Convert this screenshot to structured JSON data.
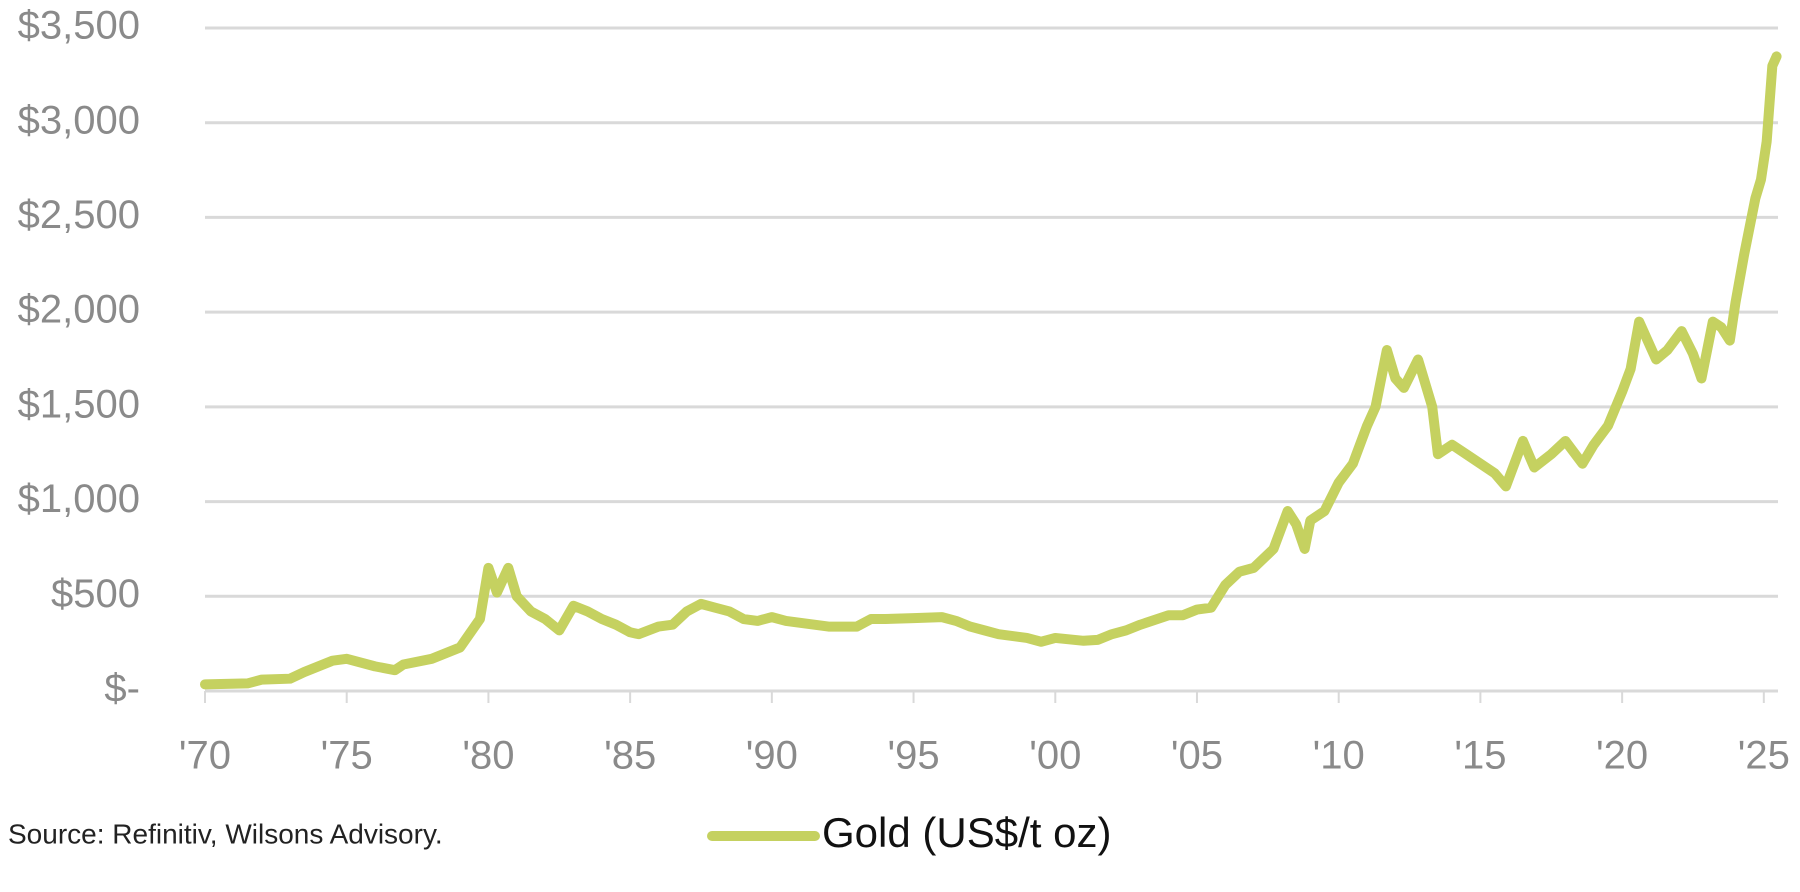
{
  "chart_data": {
    "type": "line",
    "source": "Source: Refinitiv, Wilsons Advisory.",
    "x": [
      1970,
      1971.5,
      1972,
      1973,
      1973.5,
      1974.5,
      1975,
      1976,
      1976.7,
      1977,
      1978,
      1979,
      1979.7,
      1980,
      1980.3,
      1980.7,
      1981,
      1981.5,
      1982,
      1982.5,
      1983,
      1983.5,
      1984,
      1984.5,
      1985,
      1985.3,
      1986,
      1986.5,
      1987,
      1987.5,
      1988,
      1988.5,
      1989,
      1989.5,
      1990,
      1990.5,
      1991,
      1992,
      1993,
      1993.5,
      1994,
      1995,
      1996,
      1996.5,
      1997,
      1997.5,
      1998,
      1999,
      1999.5,
      2000,
      2001,
      2001.5,
      2002,
      2002.5,
      2003,
      2004,
      2004.5,
      2005,
      2005.5,
      2006,
      2006.5,
      2007,
      2007.7,
      2008.2,
      2008.5,
      2008.8,
      2009,
      2009.5,
      2010,
      2010.5,
      2011,
      2011.3,
      2011.7,
      2012,
      2012.3,
      2012.8,
      2013,
      2013.3,
      2013.5,
      2014,
      2014.5,
      2015,
      2015.5,
      2015.9,
      2016.5,
      2016.9,
      2017.5,
      2018,
      2018.6,
      2019,
      2019.5,
      2020,
      2020.3,
      2020.6,
      2020.9,
      2021.2,
      2021.6,
      2022.1,
      2022.5,
      2022.8,
      2023.2,
      2023.5,
      2023.8,
      2024,
      2024.3,
      2024.7,
      2024.9,
      2025.1,
      2025.3,
      2025.45
    ],
    "series": [
      {
        "name": "Gold (US$/t oz)",
        "color": "#c5d160",
        "values": [
          35,
          40,
          60,
          65,
          100,
          160,
          170,
          130,
          110,
          140,
          170,
          230,
          380,
          650,
          520,
          650,
          500,
          420,
          380,
          320,
          450,
          420,
          380,
          350,
          310,
          300,
          340,
          350,
          420,
          460,
          440,
          420,
          380,
          370,
          390,
          370,
          360,
          340,
          340,
          380,
          380,
          385,
          390,
          370,
          340,
          320,
          300,
          280,
          260,
          280,
          265,
          270,
          300,
          320,
          350,
          400,
          400,
          430,
          440,
          560,
          630,
          650,
          750,
          950,
          880,
          750,
          900,
          950,
          1100,
          1200,
          1400,
          1500,
          1800,
          1650,
          1600,
          1750,
          1650,
          1500,
          1250,
          1300,
          1250,
          1200,
          1150,
          1080,
          1320,
          1180,
          1250,
          1320,
          1200,
          1300,
          1400,
          1580,
          1700,
          1950,
          1850,
          1750,
          1800,
          1900,
          1780,
          1650,
          1950,
          1920,
          1850,
          2050,
          2300,
          2600,
          2700,
          2900,
          3300,
          3350
        ]
      }
    ],
    "xlim": [
      1970,
      2025.5
    ],
    "xticks": [
      {
        "value": 1970,
        "label": "'70"
      },
      {
        "value": 1975,
        "label": "'75"
      },
      {
        "value": 1980,
        "label": "'80"
      },
      {
        "value": 1985,
        "label": "'85"
      },
      {
        "value": 1990,
        "label": "'90"
      },
      {
        "value": 1995,
        "label": "'95"
      },
      {
        "value": 2000,
        "label": "'00"
      },
      {
        "value": 2005,
        "label": "'05"
      },
      {
        "value": 2010,
        "label": "'10"
      },
      {
        "value": 2015,
        "label": "'15"
      },
      {
        "value": 2020,
        "label": "'20"
      },
      {
        "value": 2025,
        "label": "'25"
      }
    ],
    "ylim": [
      0,
      3500
    ],
    "yticks": [
      {
        "value": 0,
        "label": "$-"
      },
      {
        "value": 500,
        "label": "$500"
      },
      {
        "value": 1000,
        "label": "$1,000"
      },
      {
        "value": 1500,
        "label": "$1,500"
      },
      {
        "value": 2000,
        "label": "$2,000"
      },
      {
        "value": 2500,
        "label": "$2,500"
      },
      {
        "value": 3000,
        "label": "$3,000"
      },
      {
        "value": 3500,
        "label": "$3,500"
      }
    ],
    "grid": true
  }
}
